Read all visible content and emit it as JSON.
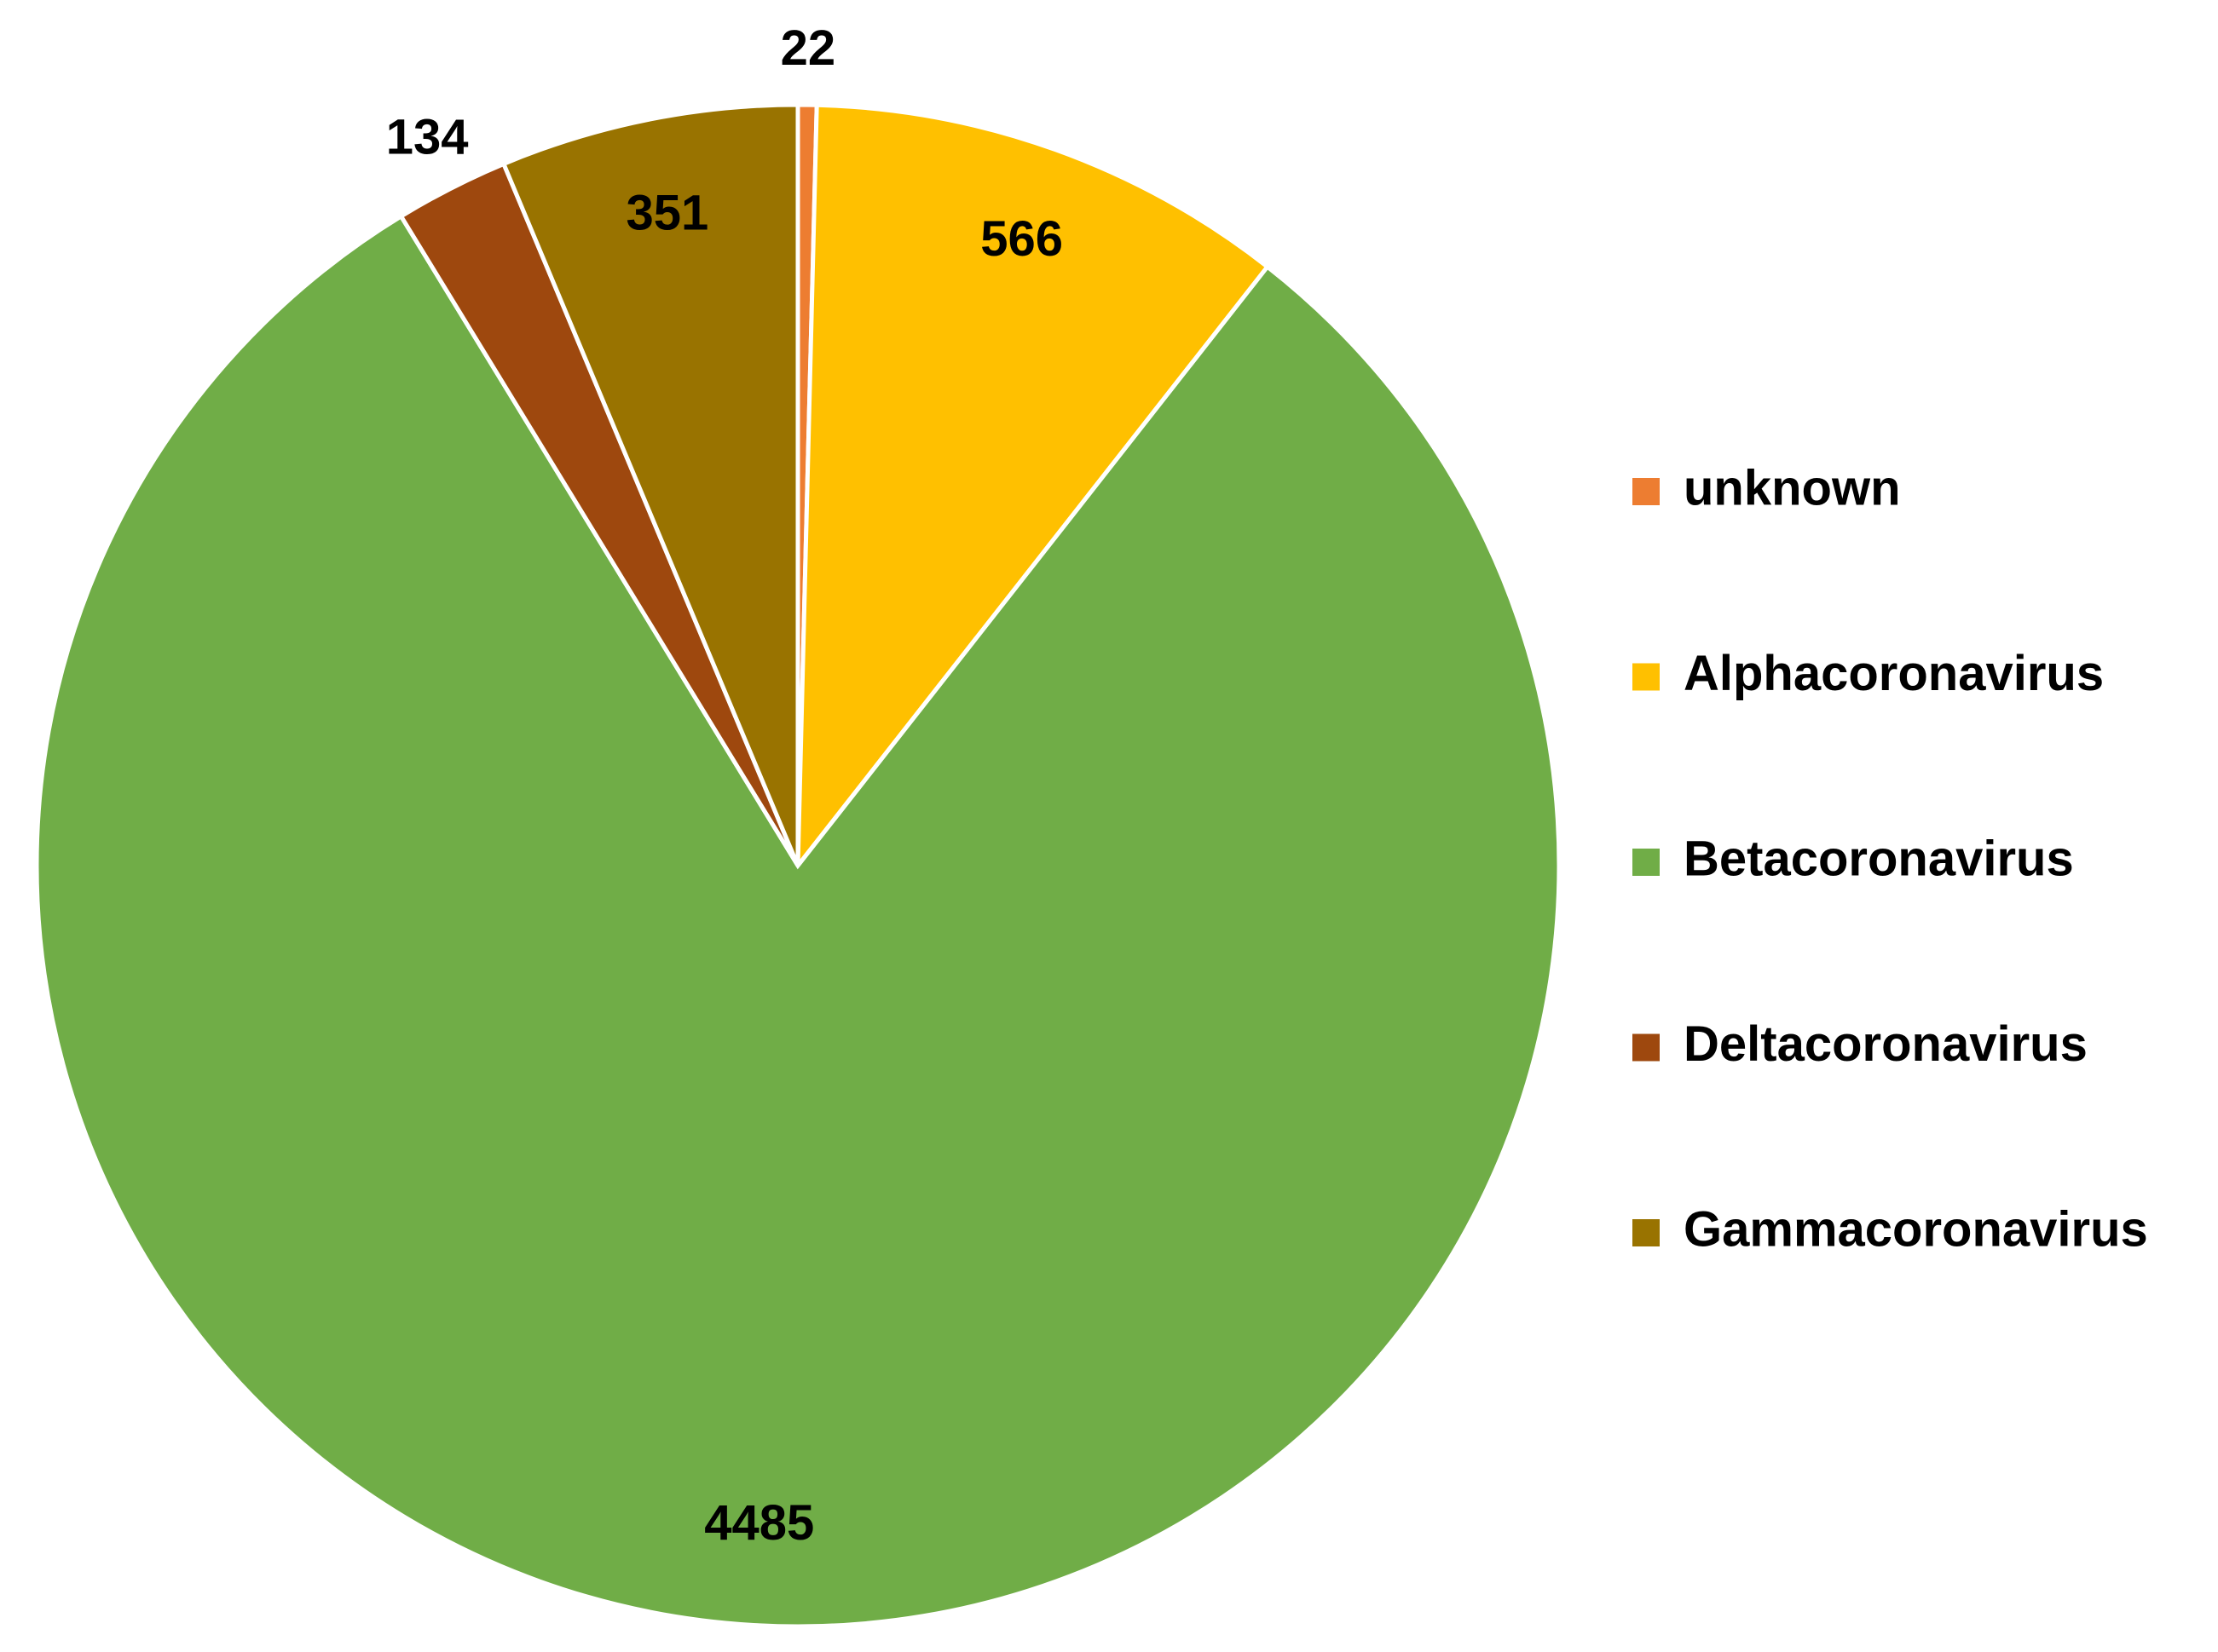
{
  "chart_data": {
    "type": "pie",
    "categories": [
      "unknown",
      "Alphacoronavirus",
      "Betacoronavirus",
      "Deltacoronavirus",
      "Gammacoronavirus"
    ],
    "values": [
      22,
      566,
      4485,
      134,
      351
    ],
    "colors": [
      "#ED7D31",
      "#FFC000",
      "#70AD47",
      "#9E480E",
      "#997300"
    ],
    "legend": "right"
  }
}
